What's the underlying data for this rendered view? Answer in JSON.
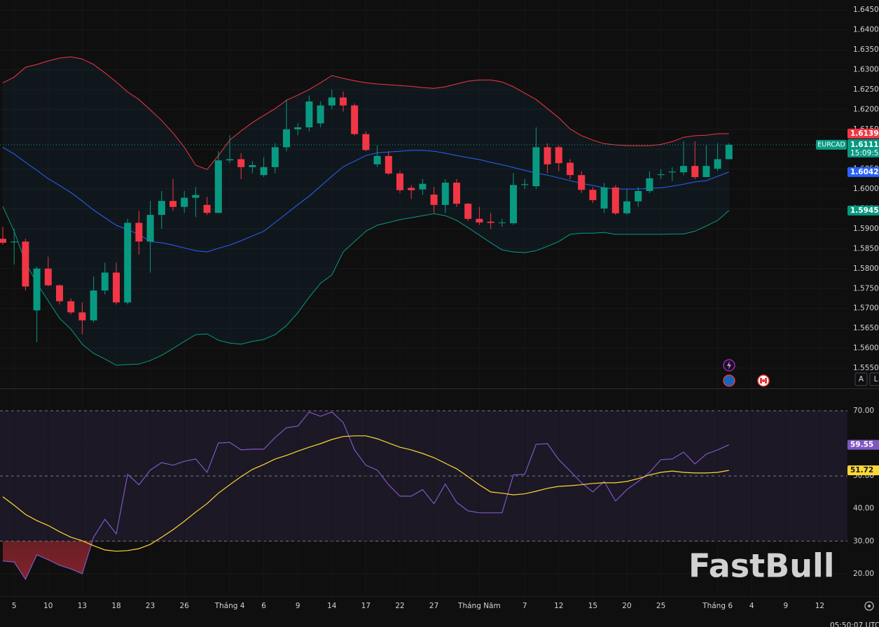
{
  "chart_data": {
    "type": "candlestick",
    "symbol": "EURCAD",
    "countdown": "15:09:5",
    "time": "05:50:07 UTC",
    "watermark": "FastBull",
    "controls": [
      "A",
      "L"
    ],
    "grid": true,
    "up_color": "#089981",
    "down_color": "#f23645",
    "categories": [
      null,
      "5",
      null,
      null,
      "10",
      null,
      null,
      "13",
      null,
      null,
      "18",
      null,
      null,
      "23",
      null,
      null,
      "26",
      null,
      null,
      null,
      "Tháng 4",
      null,
      null,
      "6",
      null,
      null,
      "9",
      null,
      null,
      "14",
      null,
      null,
      "17",
      null,
      null,
      "22",
      null,
      null,
      "27",
      null,
      null,
      null,
      "Tháng Năm",
      null,
      null,
      null,
      "7",
      null,
      null,
      "12",
      null,
      null,
      "15",
      null,
      null,
      "20",
      null,
      null,
      "25",
      null,
      null,
      null,
      null,
      "Tháng 6",
      null,
      null,
      "4",
      null,
      null,
      "9",
      null,
      null,
      "12",
      null,
      null
    ],
    "open": [
      1.5875,
      1.5866,
      1.5868,
      1.5695,
      1.58,
      1.5758,
      1.5718,
      1.569,
      1.567,
      1.5745,
      1.579,
      1.5715,
      1.5915,
      1.5868,
      1.5935,
      1.597,
      1.5955,
      1.5978,
      1.596,
      1.594,
      1.6072,
      1.6075,
      1.6055,
      1.6035,
      1.6055,
      1.6105,
      1.615,
      1.6155,
      1.6165,
      1.621,
      1.623,
      1.621,
      1.6138,
      1.6062,
      1.6083,
      1.6039,
      1.6003,
      1.5999,
      1.5986,
      1.596,
      1.6016,
      1.5963,
      1.5925,
      1.5918,
      1.5915,
      1.5914,
      1.601,
      1.6007,
      1.6105,
      1.6105,
      1.6066,
      1.6035,
      1.5998,
      1.5951,
      1.6004,
      1.5939,
      1.5969,
      1.5995,
      1.6035,
      1.6042,
      1.6042,
      1.6058,
      1.603,
      1.6051,
      1.6075,
      null,
      null,
      null,
      null,
      null,
      null,
      null,
      null,
      null,
      null
    ],
    "high": [
      1.5905,
      1.59,
      1.5875,
      1.5805,
      1.583,
      1.576,
      1.5725,
      1.5715,
      1.578,
      1.5815,
      1.5815,
      1.5925,
      1.5945,
      1.597,
      1.5995,
      1.6025,
      1.5995,
      1.6005,
      1.598,
      1.6095,
      1.6135,
      1.609,
      1.607,
      1.608,
      1.6115,
      1.6225,
      1.6165,
      1.6235,
      1.622,
      1.625,
      1.6245,
      1.6215,
      1.6145,
      1.611,
      1.6095,
      1.6045,
      1.601,
      1.6025,
      1.6005,
      1.6025,
      1.6025,
      1.5965,
      1.5955,
      1.594,
      1.5925,
      1.604,
      1.6025,
      1.6155,
      1.6115,
      1.611,
      1.6075,
      1.6045,
      1.6005,
      1.6015,
      1.601,
      1.6,
      1.6005,
      1.6045,
      1.605,
      1.6055,
      1.612,
      1.612,
      1.611,
      1.6115,
      1.6115,
      null,
      null,
      null,
      null,
      null,
      null,
      null,
      null,
      null,
      null
    ],
    "low": [
      1.586,
      1.581,
      1.5745,
      1.5615,
      1.5755,
      1.571,
      1.5685,
      1.5635,
      1.5665,
      1.5735,
      1.571,
      1.571,
      1.5835,
      1.579,
      1.59,
      1.5945,
      1.594,
      1.593,
      1.5935,
      1.594,
      1.6065,
      1.6025,
      1.604,
      1.603,
      1.604,
      1.6095,
      1.6135,
      1.6145,
      1.6155,
      1.62,
      1.6195,
      1.6135,
      1.6095,
      1.6055,
      1.6035,
      1.599,
      1.5975,
      1.5985,
      1.594,
      1.594,
      1.5955,
      1.592,
      1.591,
      1.59,
      1.5905,
      1.591,
      1.6,
      1.6,
      1.604,
      1.6045,
      1.6025,
      1.599,
      1.5965,
      1.594,
      1.5935,
      1.5935,
      1.5955,
      1.599,
      1.6025,
      1.602,
      1.6035,
      1.6025,
      1.603,
      1.6045,
      1.6075,
      null,
      null,
      null,
      null,
      null,
      null,
      null,
      null,
      null,
      null
    ],
    "close": [
      1.5865,
      1.5868,
      1.5755,
      1.58,
      1.5758,
      1.5718,
      1.569,
      1.567,
      1.5745,
      1.579,
      1.5715,
      1.5915,
      1.5868,
      1.5935,
      1.597,
      1.5955,
      1.5978,
      1.5985,
      1.594,
      1.6072,
      1.6075,
      1.6055,
      1.606,
      1.6055,
      1.6105,
      1.615,
      1.6155,
      1.622,
      1.621,
      1.623,
      1.621,
      1.6138,
      1.6098,
      1.6083,
      1.6039,
      1.5997,
      1.5997,
      1.6013,
      1.596,
      1.6016,
      1.5963,
      1.5925,
      1.5916,
      1.5915,
      1.5916,
      1.601,
      1.6012,
      1.6105,
      1.6062,
      1.6065,
      1.6035,
      1.5998,
      1.5972,
      1.6004,
      1.5939,
      1.5969,
      1.5995,
      1.6027,
      1.6037,
      1.6044,
      1.6058,
      1.603,
      1.6058,
      1.6075,
      1.61112,
      null,
      null,
      null,
      null,
      null,
      null,
      null,
      null,
      null,
      null
    ],
    "bands": [
      {
        "color": "#f23645",
        "values": [
          1.6267,
          1.6281,
          1.6306,
          1.6313,
          1.6322,
          1.6329,
          1.6332,
          1.6327,
          1.6313,
          1.6292,
          1.6269,
          1.6244,
          1.6225,
          1.6199,
          1.6172,
          1.6141,
          1.6105,
          1.606,
          1.6049,
          1.6084,
          1.6123,
          1.6146,
          1.6167,
          1.6185,
          1.6202,
          1.6223,
          1.6236,
          1.625,
          1.6267,
          1.6285,
          1.6278,
          1.6272,
          1.6267,
          1.6264,
          1.6262,
          1.626,
          1.6258,
          1.6255,
          1.6253,
          1.6257,
          1.6264,
          1.6271,
          1.6274,
          1.6274,
          1.6269,
          1.6257,
          1.6241,
          1.6225,
          1.6202,
          1.6179,
          1.6151,
          1.6134,
          1.6123,
          1.6114,
          1.6111,
          1.6109,
          1.6109,
          1.6109,
          1.6112,
          1.6119,
          1.613,
          1.6134,
          1.6135,
          1.6139,
          1.61393,
          null,
          null,
          null,
          null,
          null,
          null,
          null,
          null,
          null,
          null
        ]
      },
      {
        "color": "#2962ff",
        "values": [
          1.6105,
          1.6088,
          1.6067,
          1.6047,
          1.6026,
          1.6009,
          1.5991,
          1.597,
          1.5947,
          1.5928,
          1.5909,
          1.5898,
          1.5886,
          1.5868,
          1.5865,
          1.5859,
          1.5852,
          1.5845,
          1.5842,
          1.5851,
          1.5859,
          1.587,
          1.5882,
          1.5894,
          1.5916,
          1.5938,
          1.5961,
          1.5982,
          1.6007,
          1.6032,
          1.6056,
          1.607,
          1.6084,
          1.6091,
          1.6093,
          1.6095,
          1.6097,
          1.6097,
          1.6095,
          1.609,
          1.6084,
          1.6079,
          1.6074,
          1.6067,
          1.6061,
          1.6054,
          1.6047,
          1.604,
          1.6035,
          1.6028,
          1.6021,
          1.6014,
          1.6009,
          1.6003,
          1.6,
          1.6,
          1.6,
          1.6002,
          1.6003,
          1.6007,
          1.6012,
          1.6018,
          1.6021,
          1.6032,
          1.60426,
          null,
          null,
          null,
          null,
          null,
          null,
          null,
          null,
          null,
          null
        ]
      },
      {
        "color": "#089981",
        "values": [
          1.5956,
          1.5894,
          1.5815,
          1.5763,
          1.5719,
          1.5675,
          1.5648,
          1.561,
          1.5587,
          1.5573,
          1.5557,
          1.5559,
          1.556,
          1.5569,
          1.5582,
          1.5599,
          1.5617,
          1.5634,
          1.5636,
          1.562,
          1.5613,
          1.561,
          1.5617,
          1.5622,
          1.5634,
          1.5657,
          1.5689,
          1.5728,
          1.5763,
          1.5784,
          1.5842,
          1.5868,
          1.5894,
          1.5909,
          1.5916,
          1.5923,
          1.5928,
          1.5933,
          1.5938,
          1.5933,
          1.5921,
          1.5903,
          1.5884,
          1.5865,
          1.5847,
          1.5842,
          1.584,
          1.5845,
          1.5856,
          1.5868,
          1.5886,
          1.5889,
          1.5889,
          1.5891,
          1.5886,
          1.5886,
          1.5886,
          1.5886,
          1.5886,
          1.5887,
          1.5887,
          1.5894,
          1.5907,
          1.5921,
          1.59459,
          null,
          null,
          null,
          null,
          null,
          null,
          null,
          null,
          null,
          null
        ]
      }
    ],
    "ylim": [
      1.5499,
      1.6475
    ],
    "yticks": [
      {
        "value": 1.645,
        "label": "1.64500"
      },
      {
        "value": 1.64,
        "label": "1.64000"
      },
      {
        "value": 1.635,
        "label": "1.63500"
      },
      {
        "value": 1.63,
        "label": "1.63000"
      },
      {
        "value": 1.625,
        "label": "1.62500"
      },
      {
        "value": 1.62,
        "label": "1.62000"
      },
      {
        "value": 1.615,
        "label": "1.61500"
      },
      {
        "value": 1.61,
        "label": "1.61000"
      },
      {
        "value": 1.605,
        "label": "1.60500"
      },
      {
        "value": 1.6,
        "label": "1.60000"
      },
      {
        "value": 1.595,
        "label": "1.59500"
      },
      {
        "value": 1.59,
        "label": "1.59000"
      },
      {
        "value": 1.585,
        "label": "1.58500"
      },
      {
        "value": 1.58,
        "label": "1.58000"
      },
      {
        "value": 1.575,
        "label": "1.57500"
      },
      {
        "value": 1.57,
        "label": "1.57000"
      },
      {
        "value": 1.565,
        "label": "1.56500"
      },
      {
        "value": 1.56,
        "label": "1.56000"
      },
      {
        "value": 1.555,
        "label": "1.55500"
      }
    ],
    "rsi": {
      "ylim": [
        13.1,
        76.65
      ],
      "yticks": [
        {
          "value": 70,
          "label": "70.00"
        },
        {
          "value": 60,
          "label": "60.00"
        },
        {
          "value": 50,
          "label": "50.00"
        },
        {
          "value": 40,
          "label": "40.00"
        },
        {
          "value": 30,
          "label": "30.00"
        },
        {
          "value": 20,
          "label": "20.00"
        }
      ],
      "levels": [
        70,
        50,
        30
      ],
      "series": [
        {
          "color": "#7e57c2",
          "values": [
            23.9,
            23.6,
            18.3,
            25.8,
            24.3,
            22.6,
            21.5,
            20.0,
            31.2,
            36.7,
            32.2,
            50.5,
            47.3,
            51.8,
            54.1,
            53.3,
            54.5,
            55.2,
            51.1,
            60.1,
            60.3,
            58.0,
            58.2,
            58.2,
            61.8,
            64.8,
            65.3,
            69.6,
            68.3,
            69.6,
            66.4,
            58.0,
            53.3,
            51.8,
            47.3,
            43.8,
            43.8,
            45.8,
            41.5,
            47.5,
            41.9,
            39.3,
            38.7,
            38.7,
            38.7,
            50.3,
            50.5,
            59.7,
            59.9,
            55.0,
            51.5,
            47.9,
            45.1,
            48.3,
            42.3,
            45.8,
            48.3,
            51.1,
            55.0,
            55.2,
            57.3,
            53.7,
            56.7,
            58.0,
            59.55,
            null,
            null,
            null,
            null,
            null,
            null,
            null,
            null,
            null,
            null
          ]
        },
        {
          "color": "#fdd835",
          "values": [
            43.6,
            41.0,
            38.2,
            36.3,
            34.8,
            32.9,
            31.2,
            30.1,
            28.6,
            27.3,
            26.9,
            27.1,
            27.7,
            29.0,
            31.2,
            33.5,
            36.1,
            38.9,
            41.5,
            44.7,
            47.3,
            49.8,
            52.0,
            53.5,
            55.2,
            56.3,
            57.6,
            58.8,
            59.9,
            61.2,
            62.1,
            62.3,
            62.3,
            61.4,
            60.1,
            58.8,
            58.0,
            56.9,
            55.6,
            53.9,
            52.2,
            49.8,
            47.3,
            45.1,
            44.7,
            44.2,
            44.5,
            45.3,
            46.2,
            46.8,
            47.0,
            47.3,
            47.7,
            47.9,
            47.9,
            48.3,
            49.2,
            50.3,
            51.1,
            51.5,
            51.1,
            50.9,
            50.9,
            51.1,
            51.72,
            null,
            null,
            null,
            null,
            null,
            null,
            null,
            null,
            null,
            null
          ]
        }
      ]
    }
  }
}
